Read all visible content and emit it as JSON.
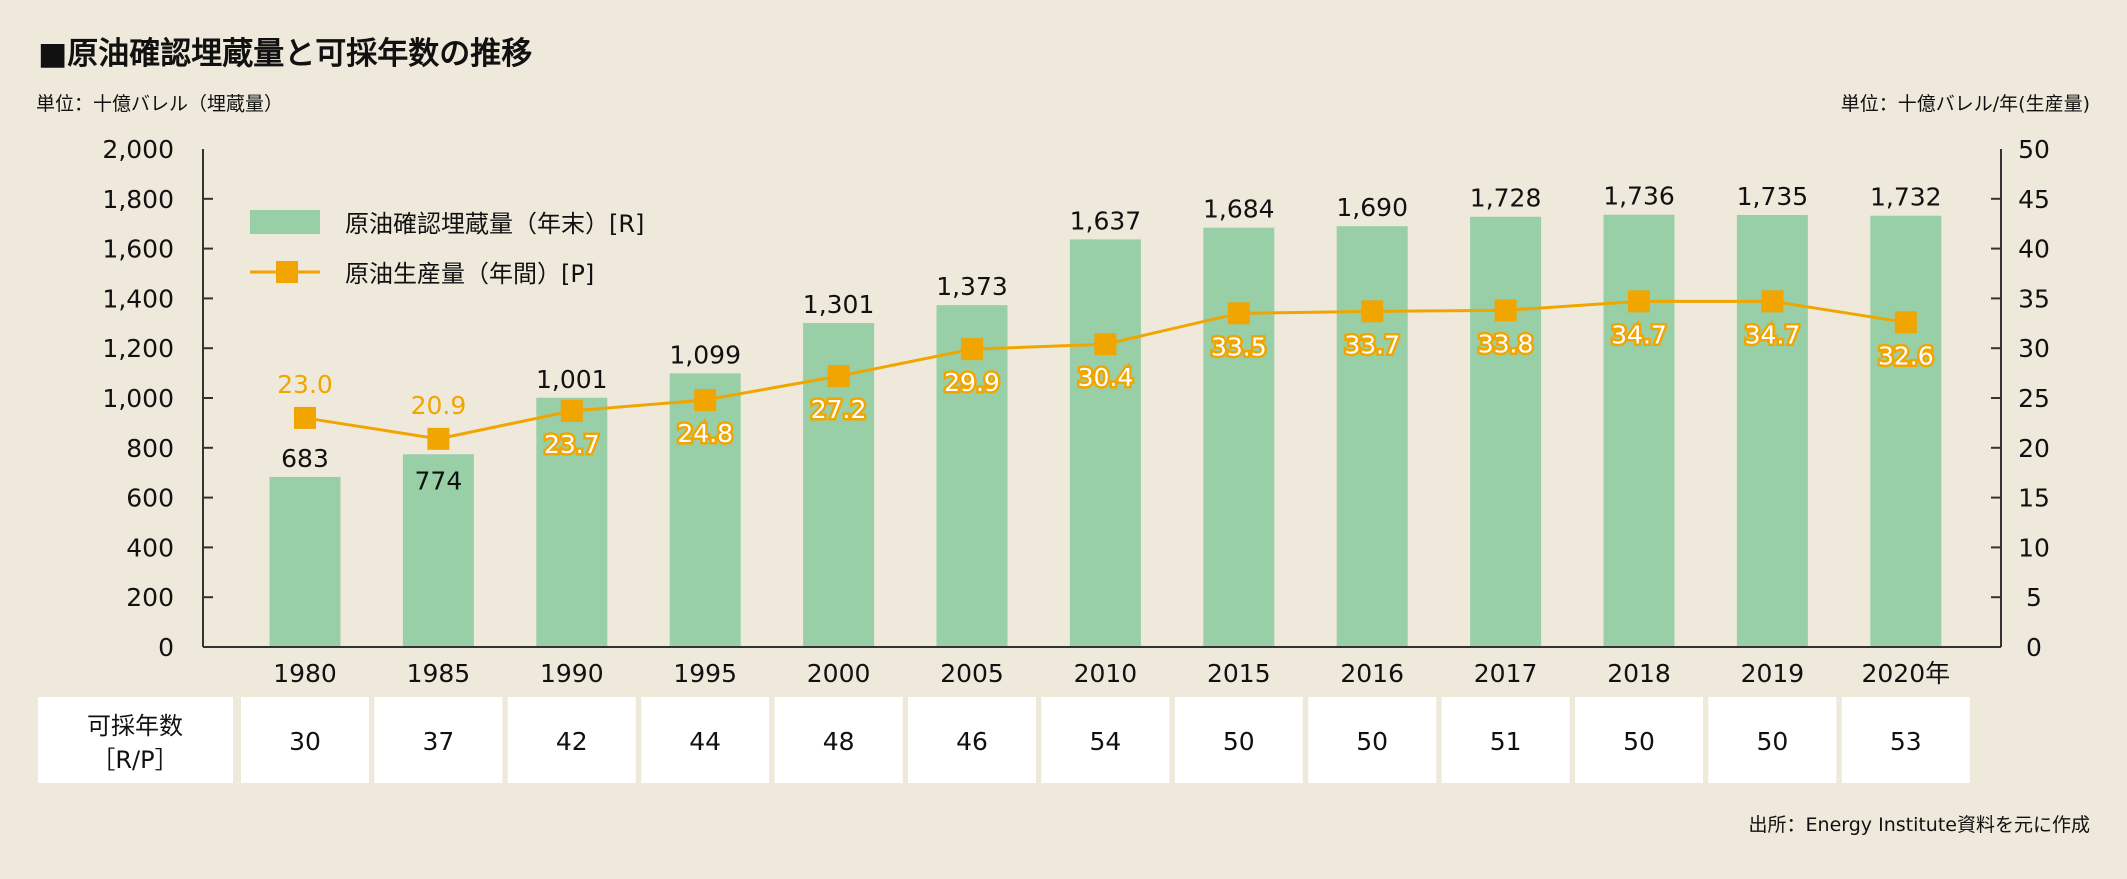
{
  "chart_data": {
    "type": "bar+line",
    "title": "■原油確認埋蔵量と可採年数の推移",
    "left_unit": "単位：十億バレル（埋蔵量）",
    "right_unit": "単位：十億バレル/年(生産量)",
    "categories": [
      "1980",
      "1985",
      "1990",
      "1995",
      "2000",
      "2005",
      "2010",
      "2015",
      "2016",
      "2017",
      "2018",
      "2019",
      "2020年"
    ],
    "series": [
      {
        "name": "原油確認埋蔵量（年末）[R]",
        "type": "bar",
        "axis": "left",
        "color": "#98cfa7",
        "values": [
          683,
          774,
          1001,
          1099,
          1301,
          1373,
          1637,
          1684,
          1690,
          1728,
          1736,
          1735,
          1732
        ],
        "labels": [
          "683",
          "774",
          "1,001",
          "1,099",
          "1,301",
          "1,373",
          "1,637",
          "1,684",
          "1,690",
          "1,728",
          "1,736",
          "1,735",
          "1,732"
        ]
      },
      {
        "name": "原油生産量（年間）[P]",
        "type": "line",
        "axis": "right",
        "color": "#f0a500",
        "values": [
          23.0,
          20.9,
          23.7,
          24.8,
          27.2,
          29.9,
          30.4,
          33.5,
          33.7,
          33.8,
          34.7,
          34.7,
          32.6
        ],
        "labels": [
          "23.0",
          "20.9",
          "23.7",
          "24.8",
          "27.2",
          "29.9",
          "30.4",
          "33.5",
          "33.7",
          "33.8",
          "34.7",
          "34.7",
          "32.6"
        ]
      }
    ],
    "ylim_left": [
      0,
      2000
    ],
    "yticks_left": [
      "0",
      "200",
      "400",
      "600",
      "800",
      "1,000",
      "1,200",
      "1,400",
      "1,600",
      "1,800",
      "2,000"
    ],
    "ylim_right": [
      0,
      50
    ],
    "yticks_right": [
      "0",
      "5",
      "10",
      "15",
      "20",
      "25",
      "30",
      "35",
      "40",
      "45",
      "50"
    ],
    "legend_position": "top-left",
    "table": {
      "row_label_1": "可採年数",
      "row_label_2": "［R/P］",
      "values": [
        "30",
        "37",
        "42",
        "44",
        "48",
        "46",
        "54",
        "50",
        "50",
        "51",
        "50",
        "50",
        "53"
      ]
    },
    "source": "出所：Energy Institute資料を元に作成"
  }
}
